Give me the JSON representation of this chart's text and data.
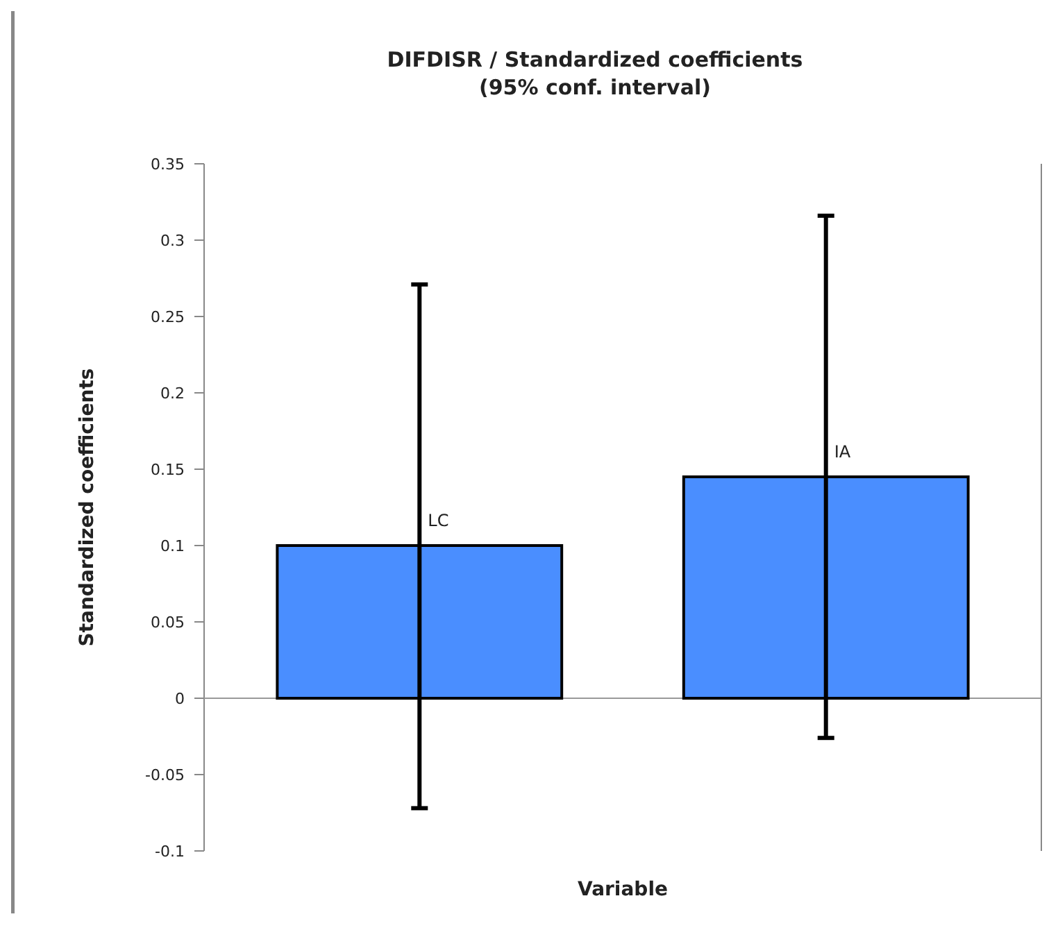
{
  "chart_data": {
    "type": "bar",
    "title": "DIFDISR / Standardized coefficients\n(95% conf. interval)",
    "xlabel": "Variable",
    "ylabel": "Standardized coefficients",
    "categories": [
      "LC",
      "IA"
    ],
    "values": [
      0.1,
      0.145
    ],
    "errors": [
      [
        -0.072,
        0.271
      ],
      [
        -0.026,
        0.316
      ]
    ],
    "color": "#4a8eff",
    "ylim": [
      -0.1,
      0.35
    ],
    "yticks": [
      -0.1,
      -0.05,
      0,
      0.05,
      0.1,
      0.15,
      0.2,
      0.25,
      0.3,
      0.35
    ]
  }
}
